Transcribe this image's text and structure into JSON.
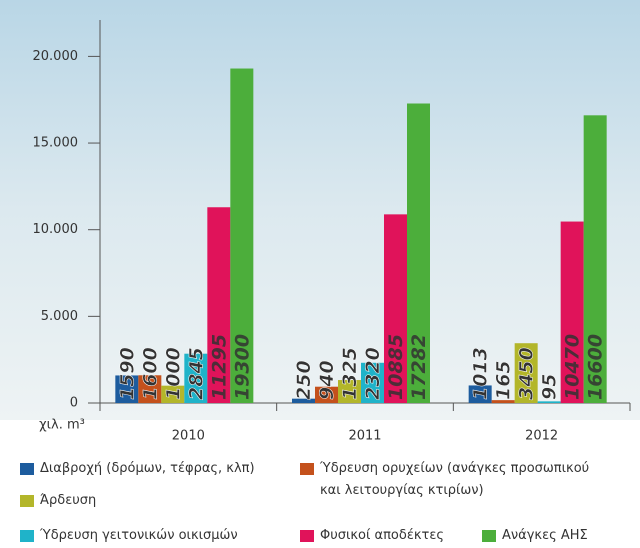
{
  "chart_data": {
    "type": "bar",
    "y_label": "χιλ. m³",
    "categories": [
      "2010",
      "2011",
      "2012"
    ],
    "series": [
      {
        "name": "Διαβροχή (δρόμων, τέφρας, κλπ)",
        "color": "#1d5c9e",
        "values": [
          1590,
          250,
          1013
        ]
      },
      {
        "name": "Ύδρευση ορυχείων (ανάγκες προσωπικού και λειτουργίας κτιρίων)",
        "color": "#c4511c",
        "values": [
          1600,
          940,
          165
        ]
      },
      {
        "name": "Άρδευση",
        "color": "#b3b62a",
        "values": [
          1000,
          1325,
          3450
        ]
      },
      {
        "name": "Ύδρευση γειτονικών οικισμών",
        "color": "#1fb3c9",
        "values": [
          2845,
          2320,
          95
        ]
      },
      {
        "name": "Φυσικοί αποδέκτες",
        "color": "#e0135a",
        "values": [
          11295,
          10885,
          10470
        ]
      },
      {
        "name": "Ανάγκες ΑΗΣ",
        "color": "#4cae3b",
        "values": [
          19300,
          17282,
          16600
        ]
      }
    ],
    "ylim": [
      0,
      22100
    ],
    "yticks": [
      0,
      {
        "value": 5000,
        "label": "5.000"
      },
      {
        "value": 10000,
        "label": "10.000"
      },
      {
        "value": 15000,
        "label": "15.000"
      },
      {
        "value": 20000,
        "label": "20.000"
      }
    ],
    "grid": false
  }
}
